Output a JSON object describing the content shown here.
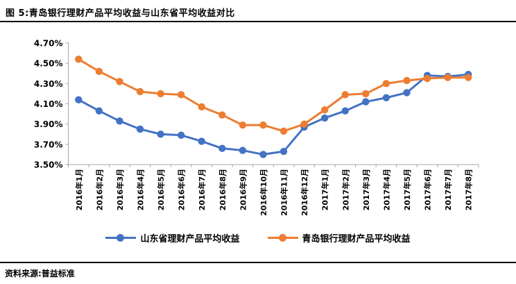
{
  "title": "图 5:青岛银行理财产品平均收益与山东省平均收益对比",
  "source_note": "资料来源:普益标准",
  "chart_data": {
    "type": "line",
    "title": "青岛银行理财产品平均收益与山东省平均收益对比",
    "categories": [
      "2016年1月",
      "2016年2月",
      "2016年3月",
      "2016年4月",
      "2016年5月",
      "2016年6月",
      "2016年7月",
      "2016年8月",
      "2016年9月",
      "2016年10月",
      "2016年11月",
      "2016年12月",
      "2017年1月",
      "2017年2月",
      "2017年3月",
      "2017年4月",
      "2017年5月",
      "2017年6月",
      "2017年7月",
      "2017年8月"
    ],
    "series": [
      {
        "name": "山东省理财产品平均收益",
        "color": "#4472C4",
        "values": [
          4.14,
          4.03,
          3.93,
          3.85,
          3.8,
          3.79,
          3.73,
          3.66,
          3.64,
          3.6,
          3.63,
          3.87,
          3.96,
          4.03,
          4.12,
          4.16,
          4.21,
          4.38,
          4.37,
          4.39
        ]
      },
      {
        "name": "青岛银行理财产品平均收益",
        "color": "#ED7D31",
        "values": [
          4.54,
          4.42,
          4.32,
          4.22,
          4.2,
          4.19,
          4.07,
          3.99,
          3.89,
          3.89,
          3.83,
          3.9,
          4.04,
          4.19,
          4.2,
          4.3,
          4.33,
          4.35,
          4.36,
          4.36
        ]
      }
    ],
    "y_axis": {
      "min": 3.5,
      "max": 4.7,
      "step": 0.2,
      "tick_labels": [
        "4.70%",
        "4.50%",
        "4.30%",
        "4.10%",
        "3.90%",
        "3.70%",
        "3.50%"
      ]
    },
    "xlabel": "",
    "ylabel": "",
    "grid": false,
    "legend_position": "bottom",
    "axis_color": "#A6A6A6"
  }
}
